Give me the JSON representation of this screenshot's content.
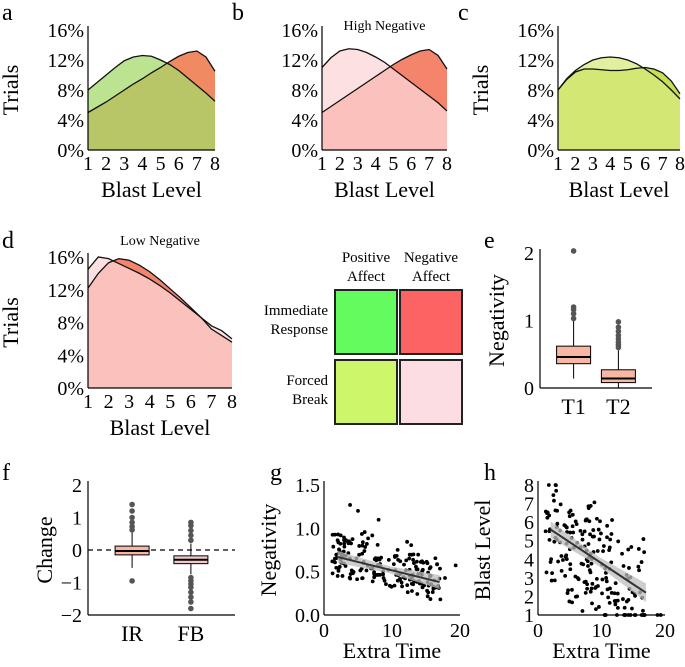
{
  "chart_data": [
    {
      "panel": "a",
      "type": "area",
      "title": "",
      "xlabel": "Blast Level",
      "ylabel": "Trials",
      "xlim": [
        1,
        8
      ],
      "ylim": [
        0,
        16
      ],
      "x_ticks": [
        "1",
        "2",
        "3",
        "4",
        "5",
        "6",
        "7",
        "8"
      ],
      "y_ticks": [
        "0%",
        "4%",
        "8%",
        "12%",
        "16%"
      ],
      "series": [
        {
          "name": "Negative Affect",
          "color": "#f08a63",
          "x": [
            1,
            1.5,
            2,
            2.5,
            3,
            3.5,
            4,
            4.5,
            5,
            5.5,
            6,
            6.5,
            7,
            7.5,
            8
          ],
          "values": [
            5.0,
            5.7,
            6.4,
            7.2,
            8.0,
            8.8,
            9.5,
            10.3,
            11.0,
            11.8,
            12.5,
            13.0,
            13.2,
            12.4,
            10.5
          ]
        },
        {
          "name": "Positive Affect",
          "color": "#a6d96a",
          "x": [
            1,
            1.5,
            2,
            2.5,
            3,
            3.5,
            4,
            4.5,
            5,
            5.5,
            6,
            6.5,
            7,
            7.5,
            8
          ],
          "values": [
            8.0,
            9.0,
            10.0,
            11.0,
            11.9,
            12.4,
            12.6,
            12.5,
            12.0,
            11.4,
            10.6,
            9.6,
            8.6,
            7.6,
            6.5
          ]
        }
      ]
    },
    {
      "panel": "b",
      "type": "area",
      "title": "High Negative",
      "xlabel": "Blast Level",
      "ylabel": "",
      "xlim": [
        1,
        8
      ],
      "ylim": [
        0,
        16
      ],
      "x_ticks": [
        "1",
        "2",
        "3",
        "4",
        "5",
        "6",
        "7",
        "8"
      ],
      "y_ticks": [
        "0%",
        "4%",
        "8%",
        "12%",
        "16%"
      ],
      "series": [
        {
          "name": "Immediate Response",
          "color": "#f4846c",
          "x": [
            1,
            1.5,
            2,
            2.5,
            3,
            3.5,
            4,
            4.5,
            5,
            5.5,
            6,
            6.5,
            7,
            7.5,
            8
          ],
          "values": [
            5.0,
            5.8,
            6.6,
            7.4,
            8.2,
            9.0,
            9.8,
            10.6,
            11.4,
            12.1,
            12.7,
            13.2,
            13.4,
            12.6,
            10.8
          ]
        },
        {
          "name": "Forced Break",
          "color": "#fcd5d8",
          "x": [
            1,
            1.5,
            2,
            2.5,
            3,
            3.5,
            4,
            4.5,
            5,
            5.5,
            6,
            6.5,
            7,
            7.5,
            8
          ],
          "values": [
            11.0,
            12.3,
            13.2,
            13.5,
            13.4,
            13.0,
            12.4,
            11.7,
            10.8,
            9.9,
            9.0,
            8.1,
            7.2,
            6.3,
            5.2
          ]
        }
      ]
    },
    {
      "panel": "c",
      "type": "area",
      "title": "",
      "xlabel": "Blast Level",
      "ylabel": "Trials",
      "xlim": [
        1,
        8
      ],
      "ylim": [
        0,
        16
      ],
      "x_ticks": [
        "1",
        "2",
        "3",
        "4",
        "5",
        "6",
        "7",
        "8"
      ],
      "y_ticks": [
        "0%",
        "4%",
        "8%",
        "12%",
        "16%"
      ],
      "series": [
        {
          "name": "Forced Break",
          "color": "#c5df57",
          "x": [
            1,
            1.5,
            2,
            2.5,
            3,
            3.5,
            4,
            4.5,
            5,
            5.5,
            6,
            6.5,
            7,
            7.5,
            8
          ],
          "values": [
            8.0,
            9.4,
            10.4,
            10.8,
            10.8,
            10.7,
            10.6,
            10.6,
            10.7,
            10.9,
            11.0,
            10.8,
            10.3,
            9.2,
            7.5
          ]
        },
        {
          "name": "Immediate Response",
          "color": "#d7eb7d",
          "x": [
            1,
            1.5,
            2,
            2.5,
            3,
            3.5,
            4,
            4.5,
            5,
            5.5,
            6,
            6.5,
            7,
            7.5,
            8
          ],
          "values": [
            8.0,
            9.5,
            10.6,
            11.4,
            12.0,
            12.3,
            12.4,
            12.3,
            12.0,
            11.5,
            10.8,
            10.0,
            9.1,
            8.0,
            6.8
          ]
        }
      ]
    },
    {
      "panel": "d",
      "type": "area",
      "title": "Low Negative",
      "xlabel": "Blast Level",
      "ylabel": "Trials",
      "xlim": [
        1,
        8
      ],
      "ylim": [
        0,
        16
      ],
      "x_ticks": [
        "1",
        "2",
        "3",
        "4",
        "5",
        "6",
        "7",
        "8"
      ],
      "y_ticks": [
        "0%",
        "4%",
        "8%",
        "12%",
        "16%"
      ],
      "series": [
        {
          "name": "Immediate Response",
          "color": "#f4846c",
          "x": [
            1,
            1.5,
            2,
            2.5,
            3,
            3.5,
            4,
            4.5,
            5,
            5.5,
            6,
            6.5,
            7,
            7.5,
            8
          ],
          "values": [
            12.2,
            14.0,
            15.3,
            15.8,
            15.6,
            15.0,
            14.2,
            13.2,
            12.1,
            11.0,
            9.8,
            8.6,
            7.2,
            6.4,
            5.6
          ]
        },
        {
          "name": "Forced Break",
          "color": "#fcd5d8",
          "x": [
            1,
            1.5,
            2,
            2.5,
            3,
            3.5,
            4,
            4.5,
            5,
            5.5,
            6,
            6.5,
            7,
            7.5,
            8
          ],
          "values": [
            14.5,
            16.0,
            15.8,
            15.2,
            14.6,
            14.0,
            13.3,
            12.5,
            11.6,
            10.6,
            9.6,
            8.6,
            7.6,
            7.0,
            6.0
          ]
        }
      ]
    },
    {
      "panel": "e",
      "type": "box",
      "xlabel": "",
      "ylabel": "Negativity",
      "ylim": [
        0,
        2
      ],
      "y_ticks": [
        "0",
        "1",
        "2"
      ],
      "categories": [
        "T1",
        "T2"
      ],
      "boxes": [
        {
          "name": "T1",
          "q1": 0.36,
          "median": 0.46,
          "q3": 0.62,
          "whisker_low": 0.14,
          "whisker_high": 1.0,
          "outliers": [
            1.03,
            1.1,
            1.16,
            1.2,
            2.03
          ]
        },
        {
          "name": "T2",
          "q1": 0.08,
          "median": 0.14,
          "q3": 0.27,
          "whisker_low": 0.0,
          "whisker_high": 0.56,
          "outliers": [
            0.6,
            0.64,
            0.68,
            0.73,
            0.78,
            0.84,
            0.9,
            0.98
          ]
        }
      ]
    },
    {
      "panel": "f",
      "type": "box",
      "xlabel": "",
      "ylabel": "Change",
      "ylim": [
        -2,
        2
      ],
      "y_ticks": [
        "−2",
        "−1",
        "0",
        "1",
        "2"
      ],
      "reference_line": 0,
      "categories": [
        "IR",
        "FB"
      ],
      "boxes": [
        {
          "name": "IR",
          "q1": -0.15,
          "median": -0.03,
          "q3": 0.12,
          "whisker_low": -0.55,
          "whisker_high": 0.55,
          "outliers": [
            0.62,
            0.72,
            0.85,
            1.0,
            1.2,
            1.4,
            -0.95
          ]
        },
        {
          "name": "FB",
          "q1": -0.42,
          "median": -0.3,
          "q3": -0.18,
          "whisker_low": -0.75,
          "whisker_high": 0.2,
          "outliers": [
            0.3,
            0.45,
            0.6,
            0.75,
            0.85,
            -0.85,
            -0.95,
            -1.05,
            -1.15,
            -1.3,
            -1.45,
            -1.6,
            -1.8
          ]
        }
      ]
    },
    {
      "panel": "g",
      "type": "scatter",
      "xlabel": "Extra Time",
      "ylabel": "Negativity",
      "xlim": [
        0,
        20
      ],
      "ylim": [
        0,
        1.5
      ],
      "x_ticks": [
        "0",
        "10",
        "20"
      ],
      "y_ticks": [
        "0.0",
        "0.5",
        "1.0",
        "1.5"
      ],
      "fit_line": {
        "x": [
          2,
          17
        ],
        "y": [
          0.67,
          0.38
        ],
        "ci_halfwidth": [
          0.07,
          0.04,
          0.08
        ]
      },
      "points_count": 200,
      "points_seed": 11
    },
    {
      "panel": "h",
      "type": "scatter",
      "xlabel": "Extra Time",
      "ylabel": "Blast Level",
      "xlim": [
        0,
        20
      ],
      "ylim": [
        1,
        8
      ],
      "x_ticks": [
        "0",
        "10",
        "20"
      ],
      "y_ticks": [
        "1",
        "2",
        "3",
        "4",
        "5",
        "6",
        "7",
        "8"
      ],
      "fit_line": {
        "x": [
          2,
          17
        ],
        "y": [
          5.6,
          2.2
        ],
        "ci_halfwidth": [
          0.45,
          0.25,
          0.5
        ]
      },
      "points_count": 200,
      "points_seed": 7
    }
  ],
  "panel_labels": [
    "a",
    "b",
    "c",
    "d",
    "e",
    "f",
    "g",
    "h"
  ],
  "legend_grid": {
    "col_headers": [
      "Positive\nAffect",
      "Negative\nAffect"
    ],
    "row_headers": [
      "Immediate\nResponse",
      "Forced\nBreak"
    ],
    "cells": [
      {
        "row": "Immediate Response",
        "col": "Positive Affect",
        "color": "#63fb5e"
      },
      {
        "row": "Immediate Response",
        "col": "Negative Affect",
        "color": "#fc6363"
      },
      {
        "row": "Forced Break",
        "col": "Positive Affect",
        "color": "#cdf66a"
      },
      {
        "row": "Forced Break",
        "col": "Negative Affect",
        "color": "#fcdde3"
      }
    ]
  },
  "colors": {
    "box_fill": "#f7b7a3",
    "box_fill_light": "#f2c8c8",
    "fit": "#333333",
    "ci": "#bdbdbd"
  }
}
